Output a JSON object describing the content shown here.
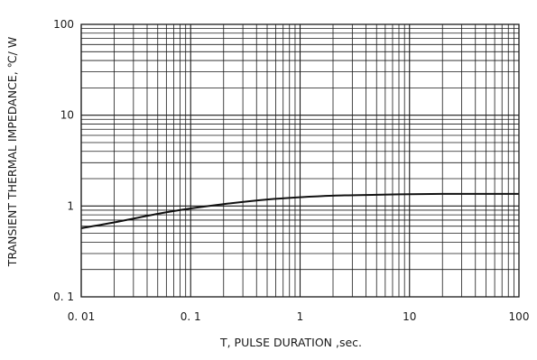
{
  "chart_data": {
    "type": "line",
    "xlabel": "T, PULSE DURATION ,sec.",
    "ylabel": "TRANSIENT THERMAL IMPEDANCE, ℃/ W",
    "xscale": "log",
    "yscale": "log",
    "xlim": [
      0.01,
      100
    ],
    "ylim": [
      0.1,
      100
    ],
    "grid": true,
    "x_ticks": [
      {
        "value": 0.01,
        "label": "0. 01"
      },
      {
        "value": 0.1,
        "label": "0. 1"
      },
      {
        "value": 1,
        "label": "1"
      },
      {
        "value": 10,
        "label": "10"
      },
      {
        "value": 100,
        "label": "100"
      }
    ],
    "y_ticks": [
      {
        "value": 0.1,
        "label": "0. 1"
      },
      {
        "value": 1,
        "label": "1"
      },
      {
        "value": 10,
        "label": "10"
      },
      {
        "value": 100,
        "label": "100"
      }
    ],
    "series": [
      {
        "color": "#111111",
        "x": [
          0.01,
          0.02,
          0.05,
          0.1,
          0.2,
          0.5,
          1,
          2,
          5,
          10,
          20,
          50,
          100
        ],
        "y": [
          0.57,
          0.66,
          0.82,
          0.94,
          1.05,
          1.18,
          1.25,
          1.3,
          1.33,
          1.35,
          1.36,
          1.36,
          1.36
        ]
      }
    ]
  }
}
